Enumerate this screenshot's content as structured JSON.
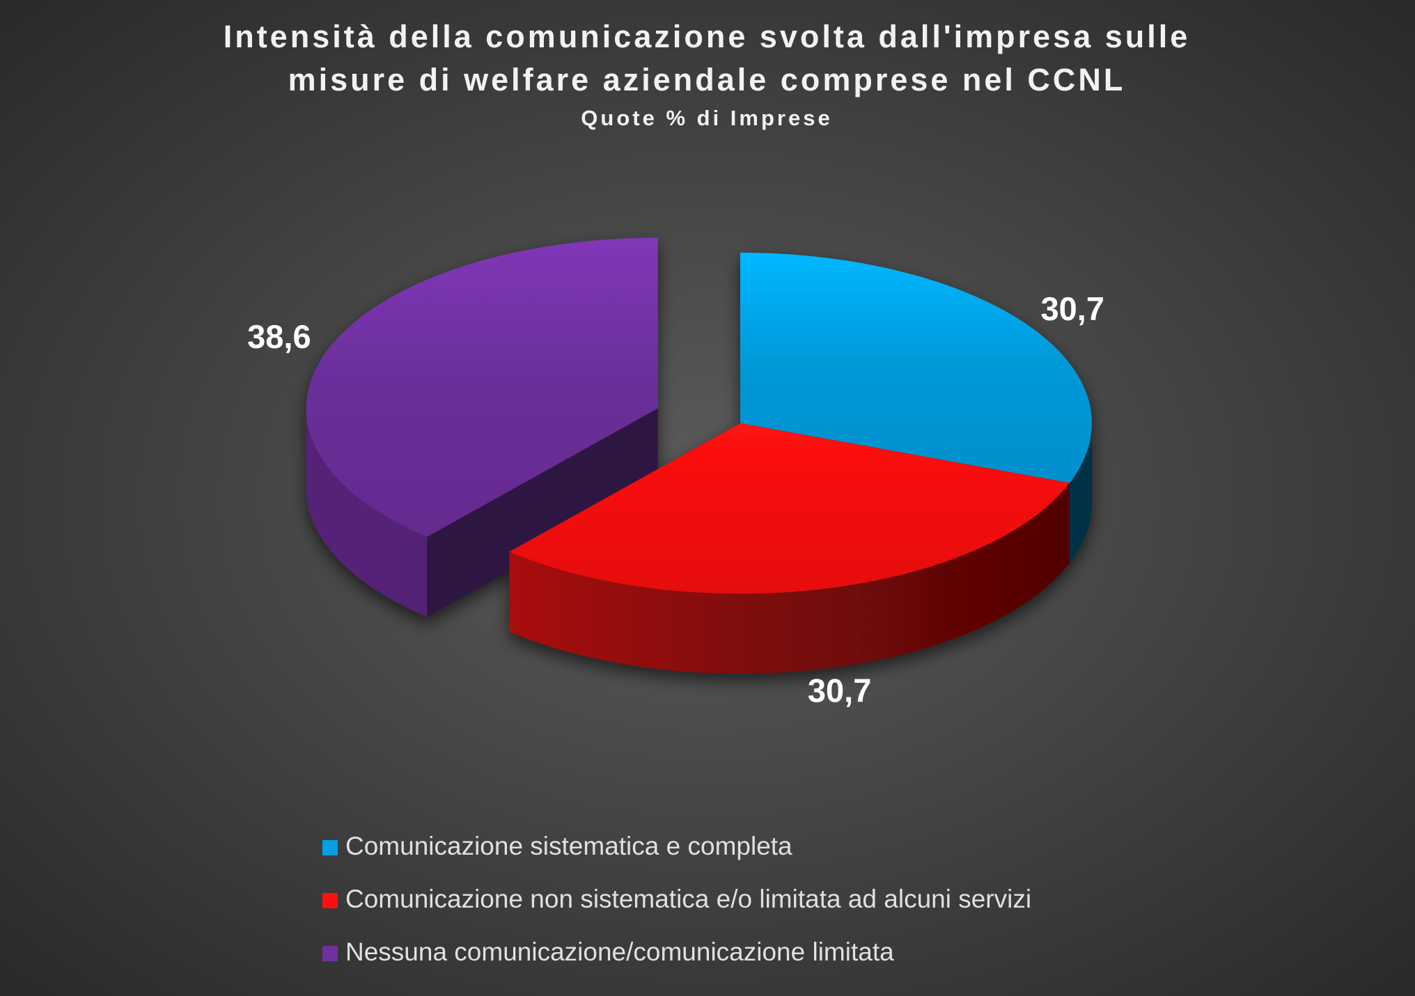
{
  "chart_data": {
    "type": "pie",
    "title": [
      "Intensità della comunicazione svolta dall'impresa sulle",
      "misure di welfare aziendale comprese nel CCNL"
    ],
    "subtitle": "Quote % di Imprese",
    "categories": [
      "Comunicazione sistematica e completa",
      "Comunicazione non sistematica e/o limitata ad alcuni servizi",
      "Nessuna comunicazione/comunicazione limitata"
    ],
    "values": [
      30.7,
      30.7,
      38.6
    ],
    "value_labels": [
      "30,7",
      "30,7",
      "38,6"
    ],
    "colors": [
      "#00a0e3",
      "#ff1010",
      "#7030a0"
    ],
    "exploded": [
      false,
      false,
      true
    ],
    "legend": "bottom"
  }
}
